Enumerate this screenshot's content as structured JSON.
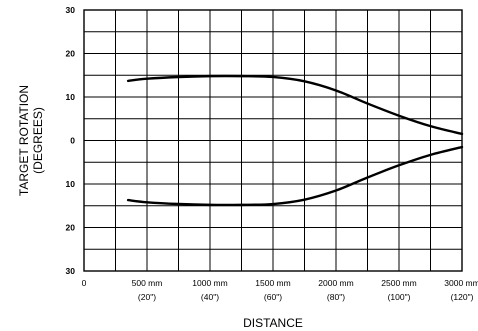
{
  "chart_data": {
    "type": "line",
    "title": "",
    "xlabel": "DISTANCE",
    "ylabel_lines": [
      "TARGET ROTATION",
      "(DEGREES)"
    ],
    "xlim": [
      0,
      3000
    ],
    "ylim": [
      -30,
      30
    ],
    "grid": true,
    "y_ticks": [
      {
        "value": 30,
        "label": "30"
      },
      {
        "value": 20,
        "label": "20"
      },
      {
        "value": 10,
        "label": "10"
      },
      {
        "value": 0,
        "label": "0"
      },
      {
        "value": -10,
        "label": "10"
      },
      {
        "value": -20,
        "label": "20"
      },
      {
        "value": -30,
        "label": "30"
      }
    ],
    "x_ticks": [
      {
        "value": 0,
        "label": "0",
        "sub": ""
      },
      {
        "value": 500,
        "label": "500 mm",
        "sub": "(20\")"
      },
      {
        "value": 1000,
        "label": "1000 mm",
        "sub": "(40\")"
      },
      {
        "value": 1500,
        "label": "1500 mm",
        "sub": "(60\")"
      },
      {
        "value": 2000,
        "label": "2000 mm",
        "sub": "(80\")"
      },
      {
        "value": 2500,
        "label": "2500 mm",
        "sub": "(100\")"
      },
      {
        "value": 3000,
        "label": "3000 mm",
        "sub": "(120\")"
      }
    ],
    "series": [
      {
        "x": [
          350,
          500,
          750,
          1000,
          1250,
          1500,
          1750,
          2000,
          2250,
          2500,
          2750,
          3000
        ],
        "y": [
          13.7,
          14.2,
          14.6,
          14.8,
          14.8,
          14.6,
          13.6,
          11.5,
          8.5,
          5.7,
          3.3,
          1.5
        ]
      },
      {
        "x": [
          350,
          500,
          750,
          1000,
          1250,
          1500,
          1750,
          2000,
          2250,
          2500,
          2750,
          3000
        ],
        "y": [
          -13.7,
          -14.2,
          -14.6,
          -14.8,
          -14.8,
          -14.6,
          -13.6,
          -11.5,
          -8.5,
          -5.7,
          -3.3,
          -1.5
        ]
      }
    ]
  }
}
